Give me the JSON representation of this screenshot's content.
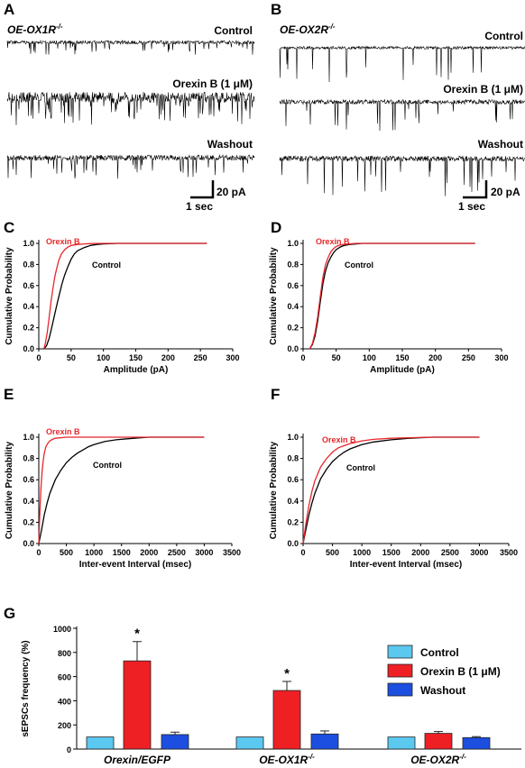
{
  "colors": {
    "control": "#000000",
    "orexin": "#e8262b",
    "bar_control": "#5bc8f0",
    "bar_orexin": "#ee2024",
    "bar_washout": "#1c4fe0",
    "bar_stroke": "#222222"
  },
  "panel_A": {
    "letter": "A",
    "genotype": "OE-OX1R",
    "genotype_sup": "-/-",
    "trace_labels": [
      "Control",
      "Orexin B (1 μM)",
      "Washout"
    ],
    "scale_y": "20 pA",
    "scale_x": "1 sec"
  },
  "panel_B": {
    "letter": "B",
    "genotype": "OE-OX2R",
    "genotype_sup": "-/-",
    "trace_labels": [
      "Control",
      "Orexin B (1 μM)",
      "Washout"
    ],
    "scale_y": "20 pA",
    "scale_x": "1 sec"
  },
  "chart_data": [
    {
      "panel": "C",
      "type": "line",
      "xlabel": "Amplitude (pA)",
      "ylabel": "Cumulative Probability",
      "xlim": [
        0,
        300
      ],
      "ylim": [
        0,
        1.0
      ],
      "xticks": [
        0,
        50,
        100,
        150,
        200,
        250,
        300
      ],
      "yticks": [
        0.0,
        0.2,
        0.4,
        0.6,
        0.8,
        1.0
      ],
      "series": [
        {
          "name": "Orexin B",
          "color": "#e8262b",
          "x": [
            8,
            10,
            13,
            16,
            19,
            22,
            25,
            28,
            31,
            35,
            40,
            45,
            50,
            60,
            70,
            80,
            100,
            130,
            260
          ],
          "y": [
            0,
            0.05,
            0.15,
            0.3,
            0.45,
            0.58,
            0.69,
            0.77,
            0.84,
            0.9,
            0.94,
            0.965,
            0.98,
            0.99,
            0.995,
            0.998,
            1.0,
            1.0,
            1.0
          ]
        },
        {
          "name": "Control",
          "color": "#000000",
          "x": [
            8,
            12,
            16,
            20,
            24,
            28,
            32,
            36,
            40,
            45,
            50,
            55,
            60,
            70,
            80,
            90,
            100,
            120,
            260
          ],
          "y": [
            0,
            0.03,
            0.1,
            0.2,
            0.31,
            0.42,
            0.52,
            0.62,
            0.7,
            0.78,
            0.85,
            0.9,
            0.93,
            0.96,
            0.98,
            0.99,
            0.995,
            1.0,
            1.0
          ]
        }
      ]
    },
    {
      "panel": "D",
      "type": "line",
      "xlabel": "Amplitude (pA)",
      "ylabel": "Cumulative Probability",
      "xlim": [
        0,
        300
      ],
      "ylim": [
        0,
        1.0
      ],
      "xticks": [
        0,
        50,
        100,
        150,
        200,
        250,
        300
      ],
      "yticks": [
        0.0,
        0.2,
        0.4,
        0.6,
        0.8,
        1.0
      ],
      "series": [
        {
          "name": "Orexin B",
          "color": "#e8262b",
          "x": [
            10,
            14,
            18,
            22,
            26,
            30,
            34,
            38,
            42,
            46,
            50,
            56,
            62,
            70,
            80,
            100,
            260
          ],
          "y": [
            0,
            0.05,
            0.15,
            0.3,
            0.5,
            0.68,
            0.8,
            0.87,
            0.92,
            0.95,
            0.97,
            0.985,
            0.99,
            0.995,
            1.0,
            1.0,
            1.0
          ]
        },
        {
          "name": "Control",
          "color": "#000000",
          "x": [
            10,
            14,
            18,
            22,
            26,
            30,
            34,
            38,
            42,
            46,
            50,
            56,
            62,
            70,
            80,
            90,
            110,
            260
          ],
          "y": [
            0,
            0.04,
            0.12,
            0.26,
            0.45,
            0.62,
            0.74,
            0.82,
            0.87,
            0.91,
            0.94,
            0.965,
            0.98,
            0.99,
            0.995,
            1.0,
            1.0,
            1.0
          ]
        }
      ]
    },
    {
      "panel": "E",
      "type": "line",
      "xlabel": "Inter-event Interval (msec)",
      "ylabel": "Cumulative Probability",
      "xlim": [
        0,
        3500
      ],
      "ylim": [
        0,
        1.0
      ],
      "xticks": [
        0,
        500,
        1000,
        1500,
        2000,
        2500,
        3000,
        3500
      ],
      "yticks": [
        0.0,
        0.2,
        0.4,
        0.6,
        0.8,
        1.0
      ],
      "series": [
        {
          "name": "Orexin B",
          "color": "#e8262b",
          "x": [
            0,
            20,
            40,
            60,
            80,
            100,
            130,
            160,
            200,
            250,
            300,
            400,
            500,
            700,
            1000,
            3000
          ],
          "y": [
            0,
            0.3,
            0.52,
            0.68,
            0.78,
            0.85,
            0.91,
            0.94,
            0.965,
            0.98,
            0.99,
            0.995,
            1.0,
            1.0,
            1.0,
            1.0
          ]
        },
        {
          "name": "Control",
          "color": "#000000",
          "x": [
            0,
            50,
            100,
            150,
            200,
            300,
            400,
            500,
            600,
            700,
            800,
            900,
            1000,
            1200,
            1400,
            1600,
            1800,
            2000,
            3000
          ],
          "y": [
            0,
            0.13,
            0.27,
            0.38,
            0.47,
            0.6,
            0.69,
            0.76,
            0.81,
            0.85,
            0.88,
            0.91,
            0.93,
            0.96,
            0.975,
            0.985,
            0.993,
            1.0,
            1.0
          ]
        }
      ]
    },
    {
      "panel": "F",
      "type": "line",
      "xlabel": "Inter-event Interval (msec)",
      "ylabel": "Cumulative Probability",
      "xlim": [
        0,
        3500
      ],
      "ylim": [
        0,
        1.0
      ],
      "xticks": [
        0,
        500,
        1000,
        1500,
        2000,
        2500,
        3000,
        3500
      ],
      "yticks": [
        0.0,
        0.2,
        0.4,
        0.6,
        0.8,
        1.0
      ],
      "series": [
        {
          "name": "Orexin B",
          "color": "#e8262b",
          "x": [
            0,
            50,
            100,
            150,
            200,
            300,
            400,
            500,
            600,
            700,
            800,
            1000,
            1200,
            1500,
            1800,
            2200,
            3000
          ],
          "y": [
            0,
            0.2,
            0.36,
            0.49,
            0.59,
            0.72,
            0.8,
            0.86,
            0.9,
            0.92,
            0.94,
            0.965,
            0.98,
            0.99,
            0.995,
            1.0,
            1.0
          ]
        },
        {
          "name": "Control",
          "color": "#000000",
          "x": [
            0,
            50,
            100,
            150,
            200,
            300,
            400,
            500,
            600,
            700,
            800,
            1000,
            1200,
            1500,
            1800,
            2200,
            3000
          ],
          "y": [
            0,
            0.14,
            0.27,
            0.38,
            0.47,
            0.61,
            0.7,
            0.77,
            0.82,
            0.86,
            0.89,
            0.93,
            0.955,
            0.975,
            0.99,
            1.0,
            1.0
          ]
        }
      ]
    },
    {
      "panel": "G",
      "type": "bar",
      "ylabel": "sEPSCs frequency (%)",
      "ylim": [
        0,
        1000
      ],
      "yticks": [
        0,
        200,
        400,
        600,
        800,
        1000
      ],
      "categories": [
        "Orexin/EGFP",
        "OE-OX1R",
        "OE-OX2R"
      ],
      "category_sups": [
        "",
        "-/-",
        "-/-"
      ],
      "series": [
        {
          "name": "Control",
          "values": [
            100,
            100,
            100
          ],
          "errors": [
            0,
            0,
            0
          ]
        },
        {
          "name": "Orexin B (1 μM)",
          "values": [
            730,
            485,
            130
          ],
          "errors": [
            160,
            75,
            15
          ]
        },
        {
          "name": "Washout",
          "values": [
            120,
            125,
            95
          ],
          "errors": [
            20,
            25,
            8
          ]
        }
      ],
      "significance": [
        "*",
        "*",
        ""
      ],
      "legend": [
        "Control",
        "Orexin B (1 μM)",
        "Washout"
      ],
      "legend_position": "right"
    }
  ]
}
